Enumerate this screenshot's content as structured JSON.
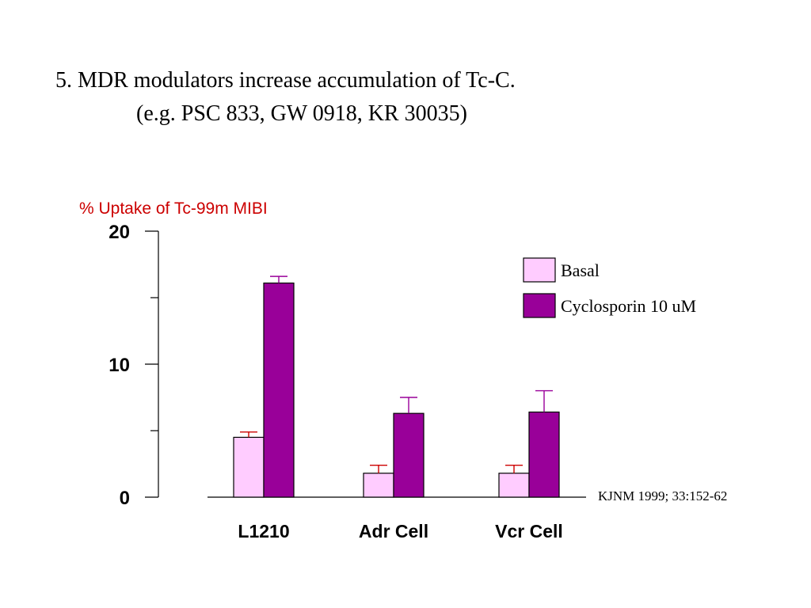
{
  "title": {
    "line1": "5. MDR modulators increase accumulation of Tc-C.",
    "line2": "(e.g. PSC 833, GW 0918, KR 30035)"
  },
  "citation": "KJNM 1999; 33:152-62",
  "colors": {
    "basal": "#ffccff",
    "cyclosporin": "#990099",
    "basal_error": "#cc0000",
    "cyclosporin_error": "#990099",
    "ylabel": "#cc0000"
  },
  "chart_data": {
    "type": "bar",
    "ylabel": "% Uptake of Tc-99m MIBI",
    "xlabel": "",
    "ylim": [
      0,
      20
    ],
    "yticks": [
      0,
      10,
      20
    ],
    "y_minor_ticks": [
      5,
      15
    ],
    "grid": false,
    "legend_position": "top-right",
    "categories": [
      "L1210",
      "Adr Cell",
      "Vcr Cell"
    ],
    "series": [
      {
        "name": "Basal",
        "values": [
          4.5,
          1.8,
          1.8
        ],
        "errors": [
          0.4,
          0.6,
          0.6
        ]
      },
      {
        "name": "Cyclosporin 10 uM",
        "values": [
          16.1,
          6.3,
          6.4
        ],
        "errors": [
          0.5,
          1.2,
          1.6
        ]
      }
    ]
  }
}
